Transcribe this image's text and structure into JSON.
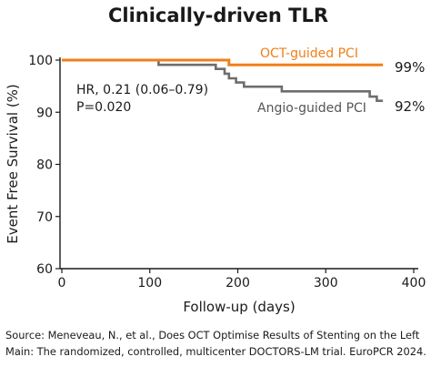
{
  "chart_data": {
    "type": "line",
    "title": "Clinically-driven TLR",
    "xlabel": "Follow-up (days)",
    "ylabel": "Event Free Survival (%)",
    "xlim": [
      0,
      400
    ],
    "ylim": [
      60,
      100
    ],
    "xticks": [
      0,
      100,
      200,
      300,
      400
    ],
    "yticks": [
      60,
      70,
      80,
      90,
      100
    ],
    "grid": false,
    "series": [
      {
        "name": "OCT-guided PCI",
        "color": "#f07f1a",
        "end_label": "99%",
        "points": [
          [
            0,
            100
          ],
          [
            190,
            100
          ],
          [
            190,
            99.1
          ],
          [
            365,
            99.1
          ]
        ]
      },
      {
        "name": "Angio-guided PCI",
        "color": "#6e6e6e",
        "end_label": "92%",
        "points": [
          [
            0,
            100
          ],
          [
            110,
            100
          ],
          [
            110,
            99.1
          ],
          [
            175,
            99.1
          ],
          [
            175,
            98.3
          ],
          [
            185,
            98.3
          ],
          [
            185,
            97.4
          ],
          [
            190,
            97.4
          ],
          [
            190,
            96.5
          ],
          [
            198,
            96.5
          ],
          [
            198,
            95.7
          ],
          [
            207,
            95.7
          ],
          [
            207,
            94.9
          ],
          [
            250,
            94.9
          ],
          [
            250,
            94.0
          ],
          [
            350,
            94.0
          ],
          [
            350,
            93.0
          ],
          [
            358,
            93.0
          ],
          [
            358,
            92.2
          ],
          [
            365,
            92.2
          ]
        ]
      }
    ],
    "annotations": [
      "HR, 0.21 (0.06–0.79)",
      "P=0.020"
    ]
  },
  "source": {
    "line1": "Source: Meneveau, N., et al., Does OCT Optimise Results of Stenting on the Left",
    "line2": "Main: The randomized, controlled, multicenter DOCTORS-LM trial. EuroPCR 2024."
  }
}
